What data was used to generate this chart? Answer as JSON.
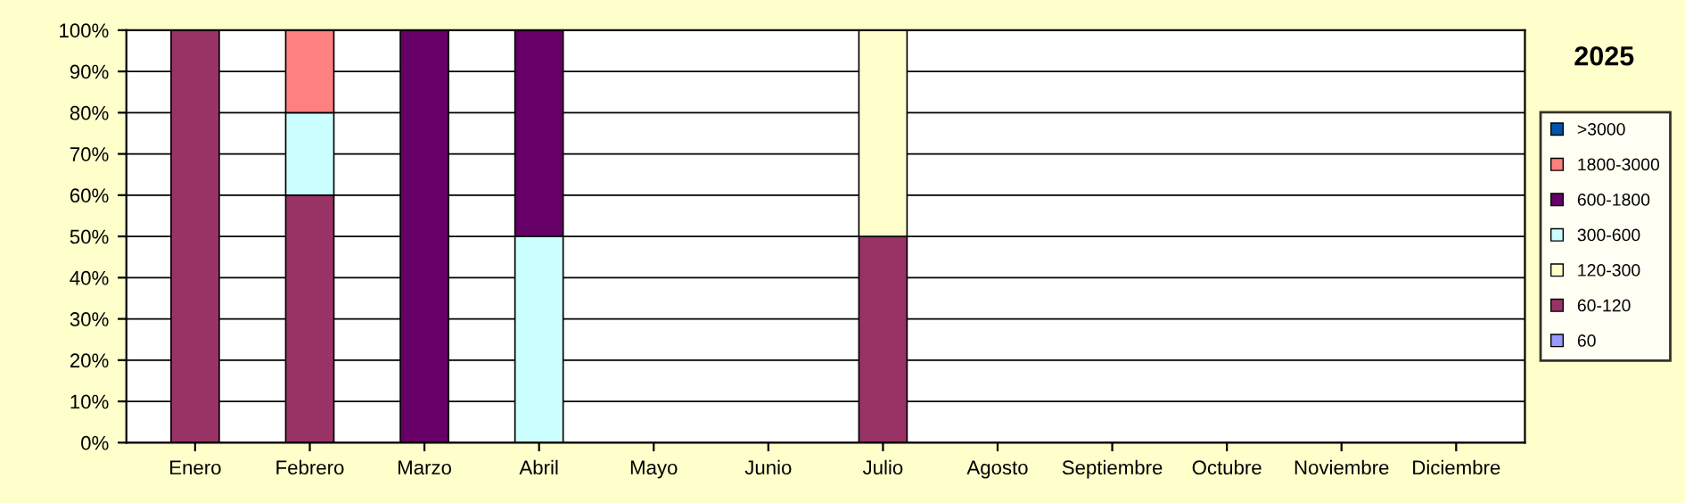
{
  "chart_data": {
    "type": "bar",
    "title": "2025",
    "stacked": true,
    "legend": "right",
    "grid": "y",
    "categories": [
      "Enero",
      "Febrero",
      "Marzo",
      "Abril",
      "Mayo",
      "Junio",
      "Julio",
      "Agosto",
      "Septiembre",
      "Octubre",
      "Noviembre",
      "Diciembre"
    ],
    "ylim": [
      0,
      100
    ],
    "yticks": [
      {
        "value": 0,
        "label": "0%"
      },
      {
        "value": 10,
        "label": "10%"
      },
      {
        "value": 20,
        "label": "20%"
      },
      {
        "value": 30,
        "label": "30%"
      },
      {
        "value": 40,
        "label": "40%"
      },
      {
        "value": 50,
        "label": "50%"
      },
      {
        "value": 60,
        "label": "60%"
      },
      {
        "value": 70,
        "label": "70%"
      },
      {
        "value": 80,
        "label": "80%"
      },
      {
        "value": 90,
        "label": "90%"
      },
      {
        "value": 100,
        "label": "100%"
      }
    ],
    "series": [
      {
        "name": "60",
        "color": "#9999ff",
        "values": [
          0,
          0,
          0,
          0,
          0,
          0,
          0,
          0,
          0,
          0,
          0,
          0
        ]
      },
      {
        "name": "60-120",
        "color": "#993366",
        "values": [
          100,
          60,
          0,
          0,
          0,
          0,
          50,
          0,
          0,
          0,
          0,
          0
        ]
      },
      {
        "name": "120-300",
        "color": "#ffffcc",
        "values": [
          0,
          0,
          0,
          0,
          0,
          0,
          50,
          0,
          0,
          0,
          0,
          0
        ]
      },
      {
        "name": "300-600",
        "color": "#ccffff",
        "values": [
          0,
          20,
          0,
          50,
          0,
          0,
          0,
          0,
          0,
          0,
          0,
          0
        ]
      },
      {
        "name": "600-1800",
        "color": "#660066",
        "values": [
          0,
          0,
          100,
          50,
          0,
          0,
          0,
          0,
          0,
          0,
          0,
          0
        ]
      },
      {
        "name": "1800-3000",
        "color": "#ff8080",
        "values": [
          0,
          20,
          0,
          0,
          0,
          0,
          0,
          0,
          0,
          0,
          0,
          0
        ]
      },
      {
        "name": ">3000",
        "color": "#0055aa",
        "values": [
          0,
          0,
          0,
          0,
          0,
          0,
          0,
          0,
          0,
          0,
          0,
          0
        ]
      }
    ]
  }
}
